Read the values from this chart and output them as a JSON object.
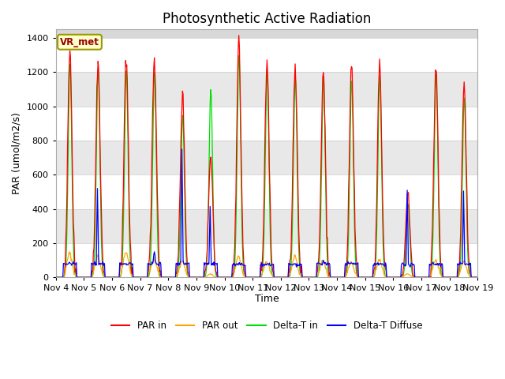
{
  "title": "Photosynthetic Active Radiation",
  "ylabel": "PAR (umol/m2/s)",
  "xlabel": "Time",
  "ylim": [
    0,
    1450
  ],
  "station_label": "VR_met",
  "x_tick_labels": [
    "Nov 4",
    "Nov 5",
    "Nov 6",
    "Nov 7",
    "Nov 8",
    "Nov 9",
    "Nov 10",
    "Nov 11",
    "Nov 12",
    "Nov 13",
    "Nov 14",
    "Nov 15",
    "Nov 16",
    "Nov 17",
    "Nov 18",
    "Nov 19"
  ],
  "colors": {
    "PAR_in": "#ff0000",
    "PAR_out": "#ffa500",
    "DeltaT_in": "#00dd00",
    "DeltaT_diffuse": "#0000ff"
  },
  "legend_labels": [
    "PAR in",
    "PAR out",
    "Delta-T in",
    "Delta-T Diffuse"
  ],
  "background_color": "#d8d8d8",
  "band_colors": [
    "#ffffff",
    "#e8e8e8"
  ],
  "grid_color": "#cccccc",
  "title_fontsize": 12,
  "label_fontsize": 9,
  "tick_fontsize": 8,
  "day_peak_par_in": [
    1340,
    1260,
    1320,
    1300,
    1070,
    700,
    1370,
    1260,
    1260,
    1200,
    1240,
    1240,
    490,
    1240,
    1130
  ],
  "day_peak_par_out": [
    140,
    130,
    145,
    110,
    95,
    20,
    120,
    90,
    120,
    100,
    90,
    100,
    20,
    100,
    95
  ],
  "day_peak_dt_in": [
    1250,
    1220,
    1210,
    1200,
    950,
    1100,
    1300,
    1200,
    1180,
    1180,
    1150,
    1180,
    430,
    1190,
    1050
  ],
  "day_peak_dt_diff": [
    85,
    520,
    80,
    150,
    750,
    415,
    80,
    80,
    80,
    100,
    85,
    80,
    510,
    80,
    505
  ],
  "day_dt_diff_base": [
    80,
    80,
    80,
    80,
    80,
    80,
    75,
    75,
    75,
    80,
    80,
    75,
    75,
    75,
    80
  ]
}
